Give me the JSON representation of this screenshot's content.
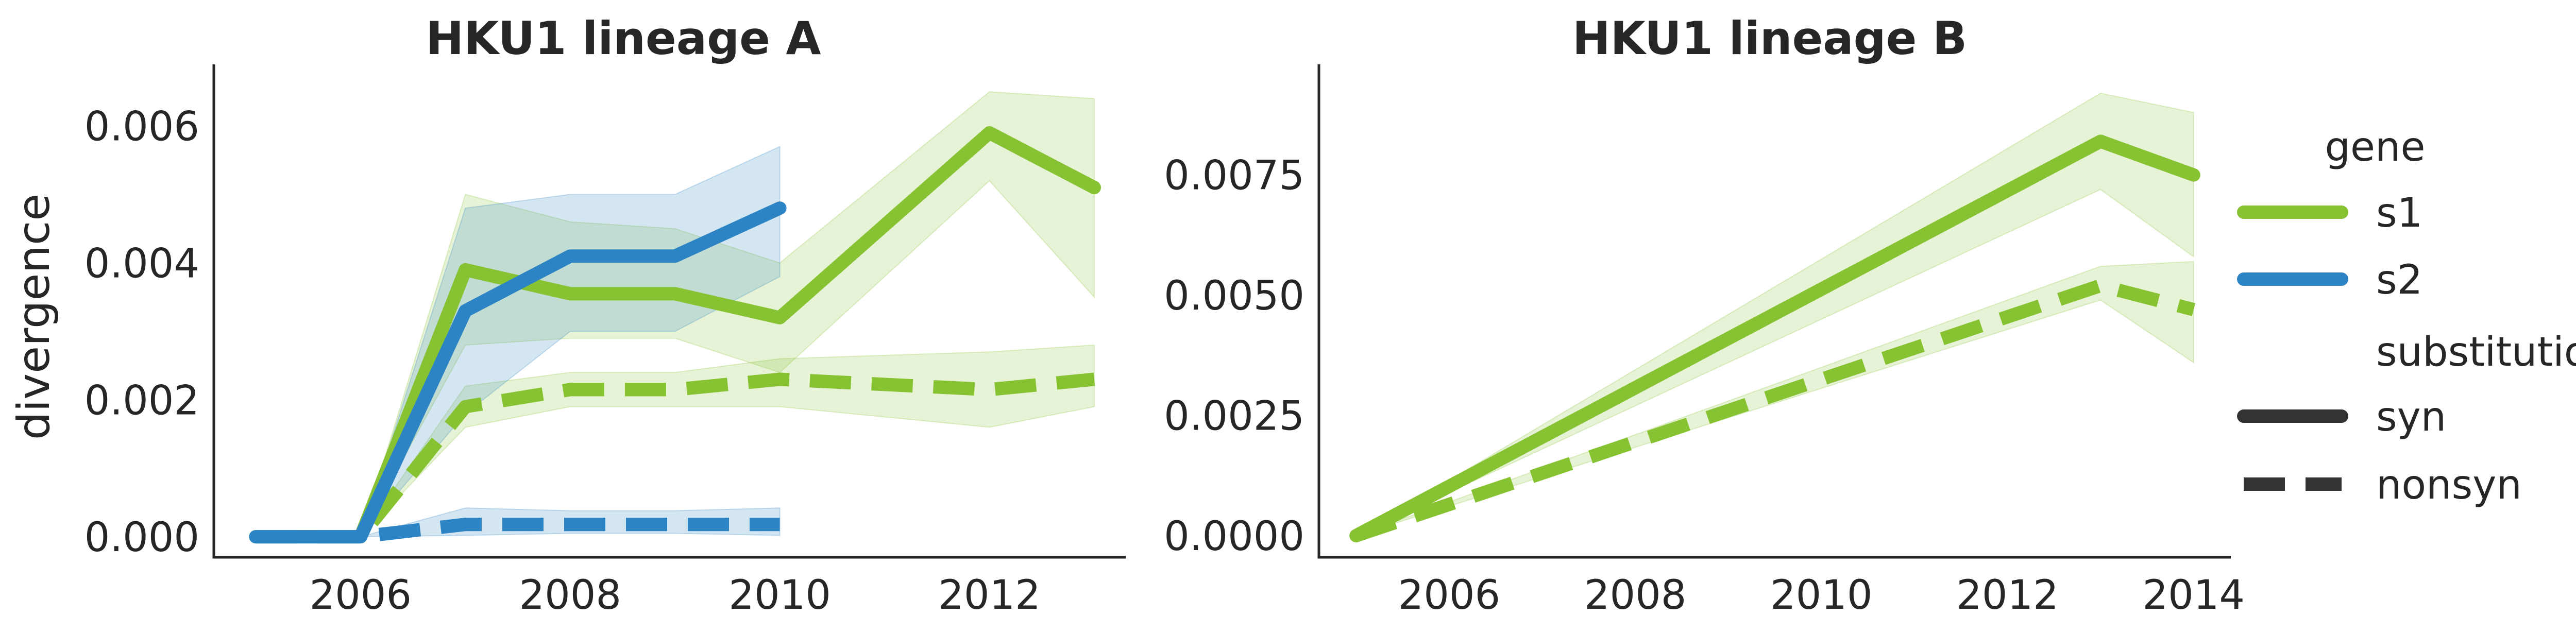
{
  "colors": {
    "s1": "#87c232",
    "s2": "#2d84c4",
    "legend_style": "#333333",
    "text": "#262626"
  },
  "chart_data": [
    {
      "type": "line",
      "title": "HKU1 lineage A",
      "xlabel": "",
      "ylabel": "divergence",
      "xlim": [
        2004.6,
        2013.3
      ],
      "ylim": [
        -0.0003,
        0.0069
      ],
      "xticks": [
        2006,
        2008,
        2010,
        2012
      ],
      "xtick_labels": [
        "2006",
        "2008",
        "2010",
        "2012"
      ],
      "yticks": [
        0.0,
        0.002,
        0.004,
        0.006
      ],
      "ytick_labels": [
        "0.000",
        "0.002",
        "0.004",
        "0.006"
      ],
      "grid": false,
      "series": [
        {
          "gene": "s1",
          "substitution": "syn",
          "x": [
            2005,
            2006,
            2007,
            2008,
            2009,
            2010,
            2012,
            2013
          ],
          "y": [
            0.0,
            0.0,
            0.0039,
            0.00355,
            0.00355,
            0.0032,
            0.0059,
            0.0051
          ],
          "ci_low": [
            0.0,
            0.0,
            0.0028,
            0.0029,
            0.0029,
            0.0024,
            0.0052,
            0.0035
          ],
          "ci_high": [
            0.0,
            0.0,
            0.005,
            0.0046,
            0.0045,
            0.004,
            0.0065,
            0.0064
          ]
        },
        {
          "gene": "s1",
          "substitution": "nonsyn",
          "x": [
            2005,
            2006,
            2007,
            2008,
            2009,
            2010,
            2012,
            2013
          ],
          "y": [
            0.0,
            0.0,
            0.0019,
            0.00215,
            0.00215,
            0.0023,
            0.00215,
            0.0023
          ],
          "ci_low": [
            0.0,
            0.0,
            0.0016,
            0.0019,
            0.0019,
            0.0019,
            0.0016,
            0.0019
          ],
          "ci_high": [
            0.0,
            0.0,
            0.0022,
            0.0024,
            0.0024,
            0.0026,
            0.0027,
            0.0028
          ]
        },
        {
          "gene": "s2",
          "substitution": "syn",
          "x": [
            2005,
            2006,
            2007,
            2008,
            2009,
            2010
          ],
          "y": [
            0.0,
            0.0,
            0.0033,
            0.0041,
            0.0041,
            0.0048
          ],
          "ci_low": [
            0.0,
            0.0,
            0.0018,
            0.003,
            0.003,
            0.0038
          ],
          "ci_high": [
            0.0,
            0.0,
            0.0048,
            0.005,
            0.005,
            0.0057
          ]
        },
        {
          "gene": "s2",
          "substitution": "nonsyn",
          "x": [
            2005,
            2006,
            2007,
            2008,
            2009,
            2010
          ],
          "y": [
            0.0,
            0.0,
            0.00018,
            0.00018,
            0.00018,
            0.00018
          ],
          "ci_low": [
            0.0,
            0.0,
            2e-05,
            5e-05,
            5e-05,
            2e-05
          ],
          "ci_high": [
            0.0,
            0.0,
            0.00042,
            0.00038,
            0.00038,
            0.00042
          ]
        }
      ]
    },
    {
      "type": "line",
      "title": "HKU1 lineage B",
      "xlabel": "",
      "ylabel": "",
      "xlim": [
        2004.6,
        2014.4
      ],
      "ylim": [
        -0.00045,
        0.0098
      ],
      "xticks": [
        2006,
        2008,
        2010,
        2012,
        2014
      ],
      "xtick_labels": [
        "2006",
        "2008",
        "2010",
        "2012",
        "2014"
      ],
      "yticks": [
        0.0,
        0.0025,
        0.005,
        0.0075
      ],
      "ytick_labels": [
        "0.0000",
        "0.0025",
        "0.0050",
        "0.0075"
      ],
      "grid": false,
      "series": [
        {
          "gene": "s1",
          "substitution": "syn",
          "x": [
            2005,
            2013,
            2014
          ],
          "y": [
            0.0,
            0.0082,
            0.0075
          ],
          "ci_low": [
            0.0,
            0.0072,
            0.0058
          ],
          "ci_high": [
            0.0,
            0.0092,
            0.0088
          ]
        },
        {
          "gene": "s1",
          "substitution": "nonsyn",
          "x": [
            2005,
            2013,
            2014
          ],
          "y": [
            0.0,
            0.0052,
            0.0047
          ],
          "ci_low": [
            0.0,
            0.0049,
            0.0036
          ],
          "ci_high": [
            0.0,
            0.0056,
            0.0057
          ]
        }
      ]
    }
  ],
  "legend": {
    "placement": "right",
    "gene_title": "gene",
    "gene_items": [
      {
        "label": "s1",
        "color": "#87c232"
      },
      {
        "label": "s2",
        "color": "#2d84c4"
      }
    ],
    "substitution_title": "substitution",
    "substitution_items": [
      {
        "label": "syn",
        "style": "solid"
      },
      {
        "label": "nonsyn",
        "style": "dashed"
      }
    ]
  }
}
